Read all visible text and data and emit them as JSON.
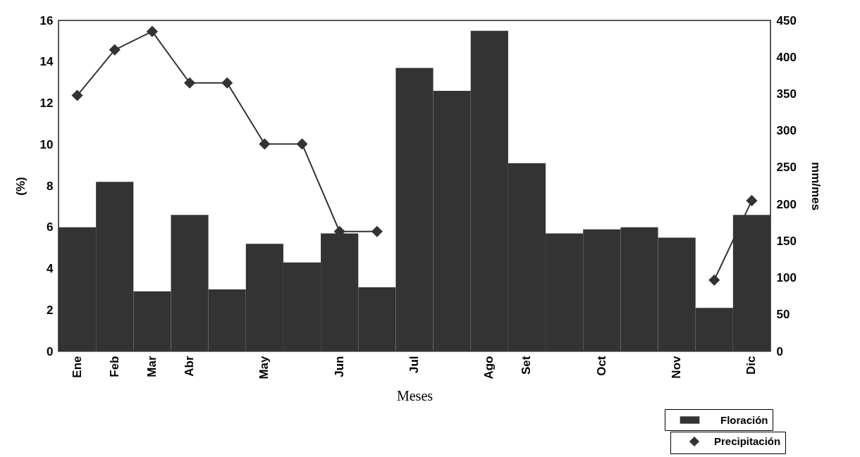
{
  "chart_data": {
    "type": "bar",
    "xlabel": "Meses",
    "ylabel": "(%)",
    "y2label": "mm/mes",
    "categories": [
      "Ene",
      "Feb",
      "Mar",
      "Abr",
      null,
      "May",
      null,
      "Jun",
      null,
      "Jul",
      null,
      "Ago",
      "Set",
      null,
      "Oct",
      null,
      "Nov",
      null,
      "Dic"
    ],
    "series": [
      {
        "name": "Floración",
        "color": "#333333",
        "values": [
          6.0,
          8.2,
          2.9,
          6.6,
          3.0,
          5.2,
          4.3,
          5.7,
          3.1,
          13.7,
          12.6,
          15.5,
          9.1,
          5.7,
          5.9,
          6.0,
          5.5,
          2.1,
          6.6
        ]
      },
      {
        "name": "Precipitación",
        "type": "line",
        "axis": "y2",
        "marker": "diamond",
        "color": "#333333",
        "values": [
          348,
          410,
          435,
          365,
          365,
          282,
          282,
          163,
          163,
          null,
          null,
          null,
          null,
          null,
          null,
          null,
          null,
          97,
          205
        ]
      }
    ],
    "ylim": [
      0,
      16
    ],
    "yticks": [
      0,
      2,
      4,
      6,
      8,
      10,
      12,
      14,
      16
    ],
    "y2lim": [
      0,
      450
    ],
    "y2ticks": [
      0,
      50,
      100,
      150,
      200,
      250,
      300,
      350,
      400,
      450
    ],
    "legend": "bottom right"
  }
}
